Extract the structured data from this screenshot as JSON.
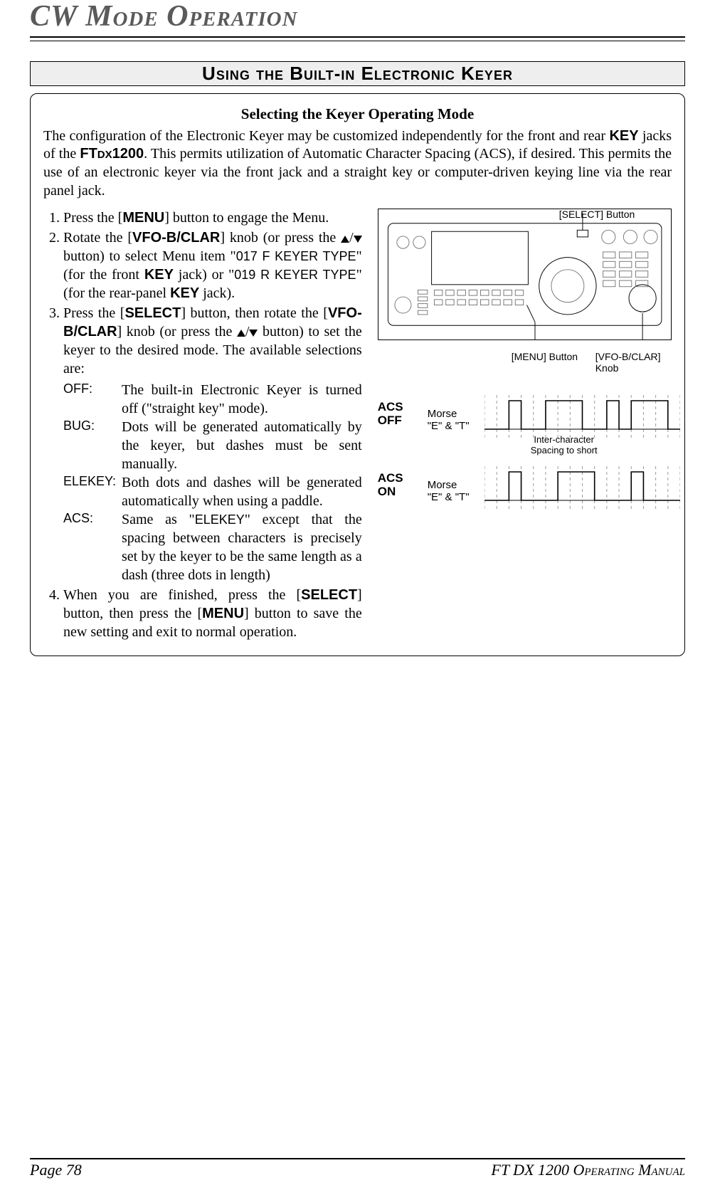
{
  "page": {
    "title_smallcaps": "CW Mode Operation",
    "section_header": "Using the Built-in Electronic Keyer",
    "box_heading": "Selecting the Keyer Operating Mode",
    "intro_html": "The configuration of the Electronic Keyer may be customized independently for the front and rear <span class='btn-txt'>KEY</span> jacks of the <span class='btn-txt'>FT<span style='font-size:.75em'>DX</span>1200</span>. This permits utilization of Automatic Character Spacing (ACS), if desired. This permits the use  of an electronic keyer via the front jack and a straight key or computer-driven keying line via the rear panel jack.",
    "footer_left": "Page 78",
    "footer_right": "FT DX 1200 Operating Manual"
  },
  "steps": [
    "Press the [<span class='btn-txt'>MENU</span>] button to engage the Menu.",
    "Rotate the [<span class='btn-txt'>VFO-B/CLAR</span>] knob (or press the <span class='tri tri-up'></span>/<span class='tri tri-down'></span> button) to select Menu item \"<span class='mono-small'>017 F KEYER TYPE</span>\" (for the front <span class='btn-txt'>KEY</span> jack) or \"<span class='mono-small'>019 R KEYER TYPE</span>\" (for the rear-panel <span class='btn-txt'>KEY</span> jack).",
    "Press the [<span class='btn-txt'>SELECT</span>] button, then rotate the [<span class='btn-txt'>VFO-B/CLAR</span>] knob (or press the <span class='tri tri-up'></span>/<span class='tri tri-down'></span> button) to set the keyer to the desired mode. The available selections are:",
    "When you are finished, press the [<span class='btn-txt'>SELECT</span>] button, then press the [<span class='btn-txt'>MENU</span>] button to save the new setting and exit to normal operation."
  ],
  "defs": [
    {
      "term": "OFF:",
      "desc": "The built-in Electronic Keyer is turned off (\"straight key\" mode)."
    },
    {
      "term": "BUG:",
      "desc": "Dots will be generated automatically by the keyer, but dashes must be sent manually."
    },
    {
      "term": "ELEKEY:",
      "desc": "Both dots and dashes will be generated automatically when using a paddle."
    },
    {
      "term": "ACS:",
      "desc": "Same as \"<span class='mono-small'>ELEKEY</span>\" except that the spacing between characters is precisely set by the keyer to be the same length as a dash (three dots in length)"
    }
  ],
  "callouts": {
    "select": "[SELECT] Button",
    "menu": "[MENU] Button",
    "vfo": "[VFO-B/CLAR] Knob"
  },
  "acs": {
    "off_label": "ACS\nOFF",
    "on_label": "ACS\nON",
    "morse_label": "Morse\n\"E\" & \"T\"",
    "inter_label": "Inter-character\nSpacing to short",
    "grid_color": "#9a9a9a",
    "wave_color": "#000000",
    "n_div": 16,
    "off_segments": [
      2,
      5,
      6,
      10,
      14
    ],
    "on_segments": [
      2,
      6,
      7,
      11,
      15
    ]
  },
  "radio": {
    "outline_color": "#000000",
    "fill_color": "#ffffff",
    "detail_color": "#777777"
  }
}
